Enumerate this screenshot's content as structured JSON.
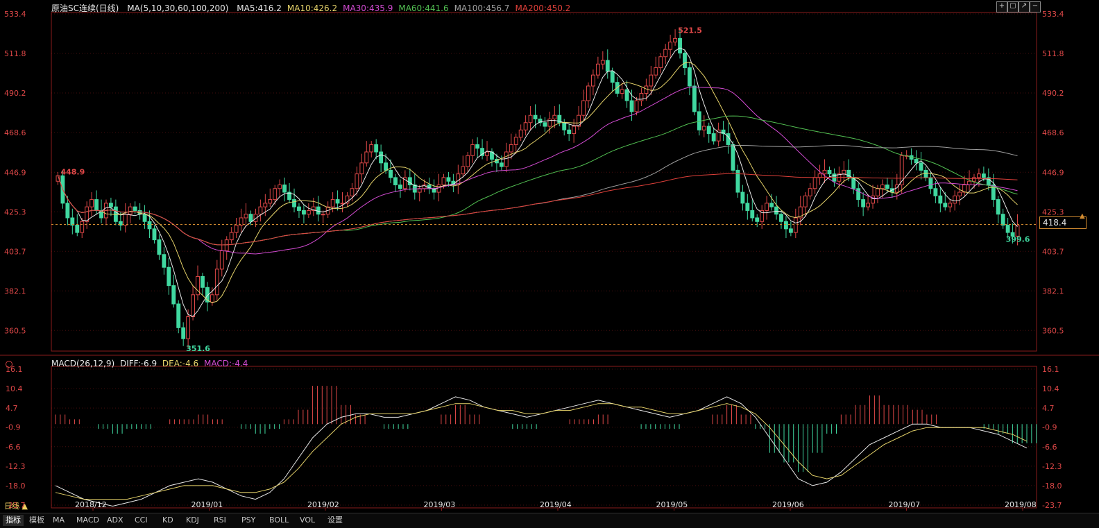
{
  "header": {
    "instrument": "原油SC连续(日线)",
    "ma_label": "MA(5,10,30,60,100,200)",
    "ma_values": [
      {
        "label": "MA5:416.2",
        "color": "#e8e8e8"
      },
      {
        "label": "MA10:426.2",
        "color": "#e6d36a"
      },
      {
        "label": "MA30:435.9",
        "color": "#d24bd2"
      },
      {
        "label": "MA60:441.6",
        "color": "#52c052"
      },
      {
        "label": "MA100:456.7",
        "color": "#a0a0a0"
      },
      {
        "label": "MA200:450.2",
        "color": "#e0403a"
      }
    ]
  },
  "macd_header": {
    "label": "MACD(26,12,9)",
    "diff": "DIFF:-6.9",
    "dea": "DEA:-4.6",
    "macd": "MACD:-4.4"
  },
  "current_price": "418.4",
  "annotations": {
    "high": "521.5",
    "low": "351.6",
    "start": "448.9",
    "recent_low": "399.6"
  },
  "bottom_bar": {
    "period": "日线 ▲",
    "tabs": [
      "指标",
      "模板",
      "MA",
      "MACD",
      "ADX",
      "CCI",
      "KD",
      "KDJ",
      "RSI",
      "PSY",
      "BOLL",
      "VOL",
      "设置"
    ]
  },
  "colors": {
    "up": "#e04848",
    "down": "#40d8a0",
    "grid": "#8a1c1c"
  },
  "chart_data": [
    {
      "type": "candlestick",
      "ylim": [
        350,
        533.4
      ],
      "y_ticks": [
        "533.4",
        "511.8",
        "490.2",
        "468.6",
        "446.9",
        "425.3",
        "403.7",
        "382.1",
        "360.5"
      ],
      "x_ticks": [
        "2018/12",
        "2019/01",
        "2019/02",
        "2019/03",
        "2019/04",
        "2019/05",
        "2019/06",
        "2019/07",
        "2019/08"
      ],
      "reference_line": 418.4,
      "close_series": [
        445,
        430,
        422,
        418,
        414,
        420,
        428,
        432,
        426,
        422,
        430,
        428,
        420,
        418,
        424,
        428,
        426,
        424,
        420,
        416,
        410,
        402,
        395,
        385,
        375,
        362,
        356,
        368,
        380,
        390,
        384,
        376,
        380,
        394,
        404,
        410,
        414,
        418,
        422,
        424,
        420,
        424,
        428,
        430,
        432,
        438,
        440,
        436,
        432,
        428,
        426,
        424,
        426,
        428,
        424,
        424,
        428,
        432,
        430,
        430,
        434,
        438,
        446,
        452,
        458,
        462,
        458,
        452,
        448,
        444,
        440,
        438,
        444,
        440,
        436,
        438,
        440,
        438,
        436,
        440,
        444,
        442,
        440,
        446,
        450,
        456,
        462,
        460,
        456,
        458,
        454,
        452,
        450,
        458,
        462,
        466,
        470,
        474,
        478,
        476,
        474,
        472,
        476,
        478,
        474,
        470,
        468,
        472,
        478,
        486,
        494,
        500,
        506,
        508,
        502,
        496,
        490,
        492,
        486,
        480,
        486,
        490,
        494,
        500,
        504,
        510,
        514,
        518,
        520,
        512,
        504,
        494,
        480,
        470,
        472,
        468,
        464,
        470,
        468,
        462,
        448,
        436,
        430,
        426,
        422,
        420,
        426,
        430,
        428,
        424,
        420,
        416,
        414,
        422,
        428,
        434,
        438,
        444,
        446,
        448,
        446,
        442,
        446,
        448,
        444,
        438,
        432,
        428,
        430,
        434,
        438,
        440,
        438,
        436,
        440,
        456,
        456,
        454,
        452,
        448,
        444,
        438,
        434,
        430,
        428,
        430,
        434,
        436,
        440,
        442,
        444,
        446,
        444,
        440,
        432,
        424,
        418,
        414,
        412,
        418
      ]
    },
    {
      "type": "line",
      "title": "MACD(26,12,9)",
      "ylim": [
        -23.7,
        16.1
      ],
      "y_ticks": [
        "16.1",
        "10.4",
        "4.7",
        "-0.9",
        "-6.6",
        "-12.3",
        "-18.0",
        "-23.7"
      ],
      "series": [
        {
          "name": "DIFF",
          "values": [
            -18,
            -20,
            -22,
            -23,
            -24,
            -23,
            -22,
            -20,
            -18,
            -17,
            -16,
            -17,
            -19,
            -21,
            -22,
            -20,
            -16,
            -10,
            -4,
            0,
            2,
            3,
            3,
            2,
            2,
            3,
            4,
            6,
            8,
            7,
            5,
            4,
            3,
            2,
            3,
            4,
            5,
            6,
            7,
            6,
            5,
            4,
            3,
            2,
            3,
            4,
            6,
            8,
            6,
            2,
            -4,
            -10,
            -16,
            -18,
            -17,
            -14,
            -10,
            -6,
            -4,
            -2,
            0,
            0,
            -1,
            -1,
            -1,
            -2,
            -3,
            -5,
            -7
          ]
        },
        {
          "name": "DEA",
          "values": [
            -20,
            -21,
            -22,
            -22,
            -22,
            -22,
            -21,
            -20,
            -19,
            -18,
            -18,
            -18,
            -19,
            -20,
            -20,
            -19,
            -17,
            -13,
            -8,
            -4,
            0,
            2,
            3,
            3,
            3,
            3,
            4,
            5,
            6,
            6,
            5,
            4,
            4,
            3,
            3,
            4,
            4,
            5,
            6,
            6,
            5,
            5,
            4,
            3,
            3,
            4,
            5,
            6,
            5,
            3,
            -1,
            -6,
            -11,
            -15,
            -16,
            -15,
            -12,
            -9,
            -6,
            -4,
            -2,
            -1,
            -1,
            -1,
            -1,
            -1,
            -2,
            -3,
            -5
          ]
        },
        {
          "name": "MACD",
          "values": [
            2,
            1,
            0,
            -1,
            -2,
            -1,
            -1,
            0,
            1,
            1,
            2,
            1,
            0,
            -1,
            -2,
            -1,
            1,
            3,
            8,
            8,
            4,
            2,
            0,
            -1,
            -1,
            0,
            0,
            2,
            4,
            2,
            0,
            0,
            -1,
            -1,
            0,
            0,
            1,
            1,
            2,
            0,
            0,
            -1,
            -1,
            -1,
            0,
            0,
            2,
            4,
            2,
            -1,
            -6,
            -8,
            -10,
            -6,
            -2,
            2,
            4,
            6,
            4,
            4,
            3,
            2,
            0,
            0,
            0,
            -1,
            -2,
            -4,
            -4
          ]
        }
      ]
    }
  ]
}
